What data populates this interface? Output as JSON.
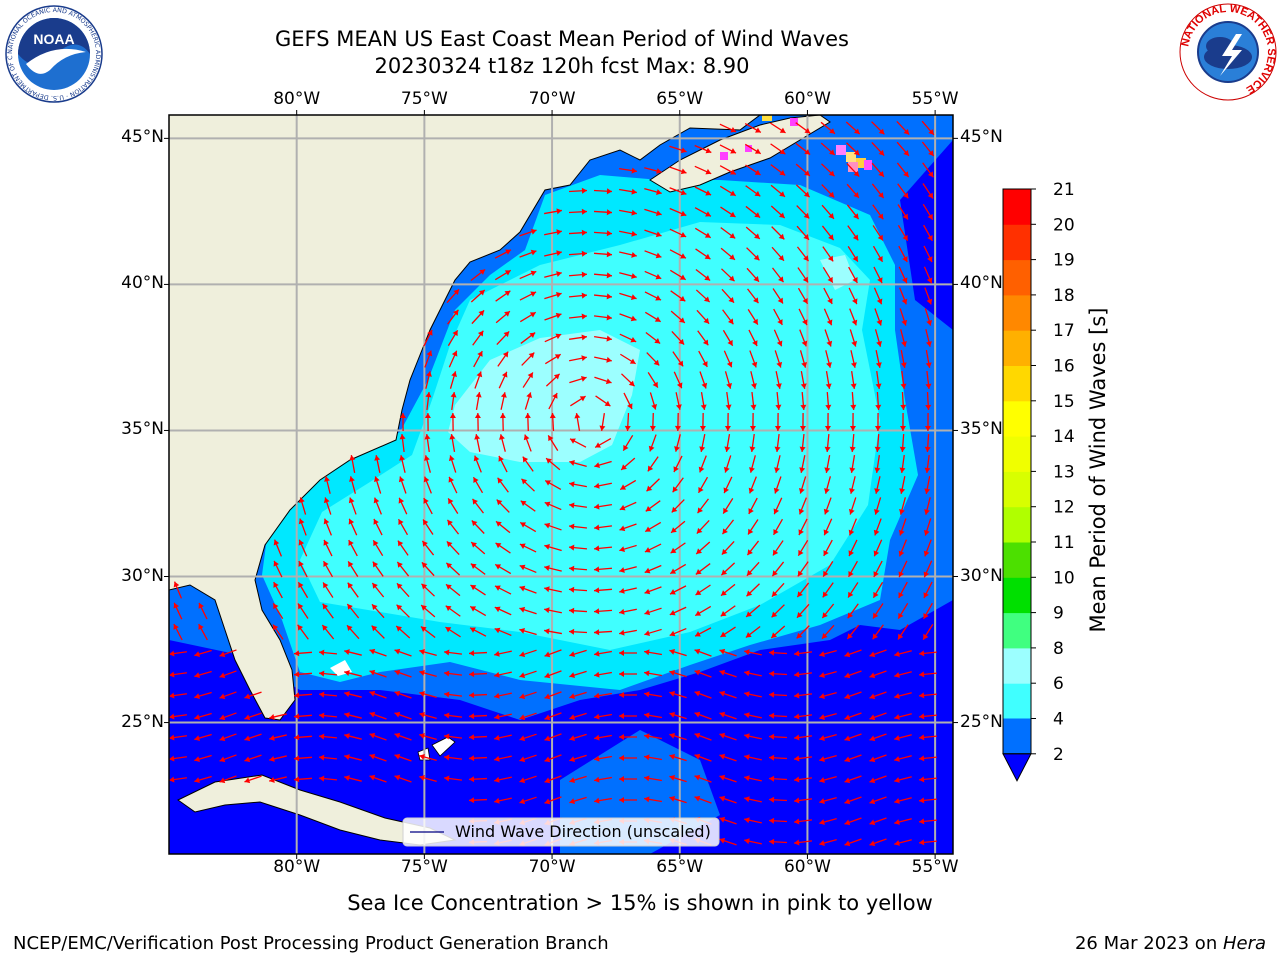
{
  "header": {
    "title_line1": "GEFS MEAN US East Coast Mean Period of Wind Waves",
    "title_line2": "20230324 t18z 120h fcst   Max: 8.90"
  },
  "logos": {
    "left": "NOAA",
    "left_ring_text": "NATIONAL OCEANIC AND ATMOSPHERIC ADMINISTRATION · U.S. DEPARTMENT OF COMMERCE",
    "right_ring_text": "NATIONAL WEATHER SERVICE"
  },
  "map": {
    "lon_ticks": [
      "80°W",
      "75°W",
      "70°W",
      "65°W",
      "60°W",
      "55°W"
    ],
    "lat_ticks": [
      "45°N",
      "40°N",
      "35°N",
      "30°N",
      "25°N"
    ],
    "lon_values": [
      -80,
      -75,
      -70,
      -65,
      -60,
      -55
    ],
    "lat_values": [
      45,
      40,
      35,
      30,
      25
    ],
    "extent": {
      "lon_min": -85,
      "lon_max": -54.3,
      "lat_min": 20.5,
      "lat_max": 45.8
    },
    "legend_label": "Wind Wave Direction (unscaled)",
    "arrow_color": "#ff0000",
    "land_color": "#efefdc"
  },
  "colorbar": {
    "label": "Mean Period of Wind Waves [s]",
    "tick_labels": [
      "2",
      "4",
      "6",
      "8",
      "9",
      "10",
      "11",
      "12",
      "13",
      "14",
      "15",
      "16",
      "17",
      "18",
      "19",
      "20",
      "21"
    ],
    "colors": [
      "#0070ff",
      "#00e8ff",
      "#40ffff",
      "#9cffff",
      "#40ff80",
      "#00e000",
      "#4ce000",
      "#b0ff00",
      "#d8ff00",
      "#f0ff00",
      "#ffff00",
      "#ffd800",
      "#ffb000",
      "#ff8800",
      "#ff6000",
      "#ff3000",
      "#ff0000"
    ],
    "under_color": "#0000ff"
  },
  "footer": {
    "subtitle": "Sea Ice Concentration > 15% is shown in pink to yellow",
    "left": "NCEP/EMC/Verification Post Processing Product Generation Branch",
    "right_date": "26 Mar 2023 on ",
    "right_host": "Hera"
  }
}
